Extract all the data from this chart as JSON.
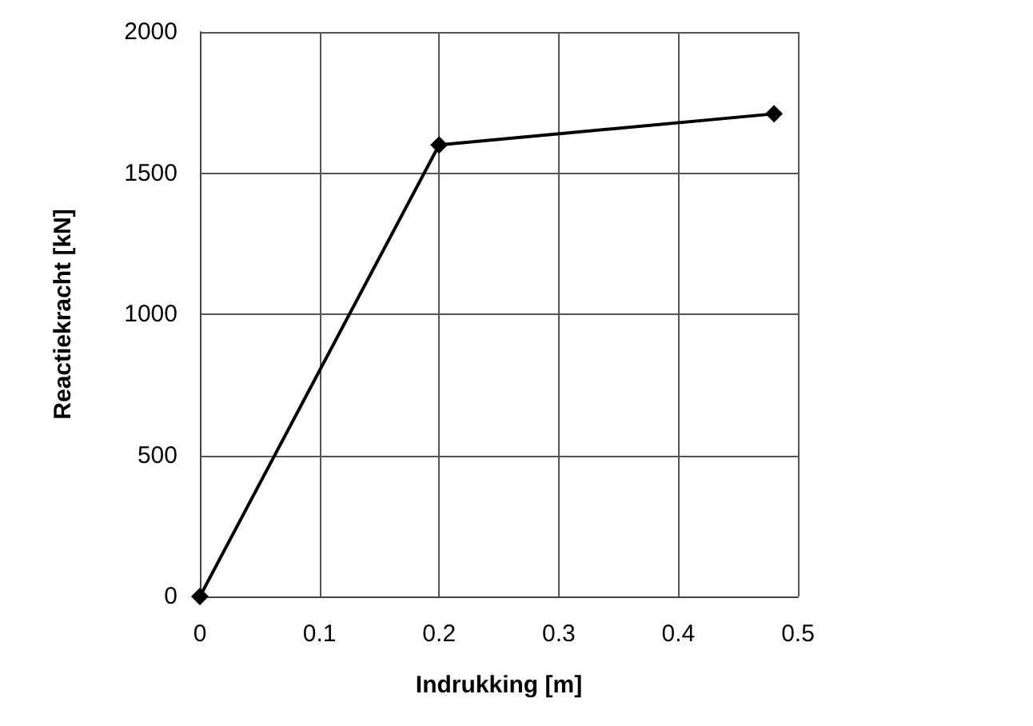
{
  "chart_data": {
    "type": "line",
    "xlabel": "Indrukking [m]",
    "ylabel": "Reactiekracht [kN]",
    "x": [
      0,
      0.2,
      0.48
    ],
    "series": [
      {
        "color": "#000000",
        "values": [
          0,
          1600,
          1710
        ]
      }
    ],
    "xlim": [
      0,
      0.5
    ],
    "xticks": [
      0,
      0.1,
      0.2,
      0.3,
      0.4,
      0.5
    ],
    "ylim": [
      0,
      2000
    ],
    "yticks": [
      0,
      500,
      1000,
      1500,
      2000
    ],
    "grid": true,
    "marker": "diamond",
    "line_style": "solid"
  }
}
